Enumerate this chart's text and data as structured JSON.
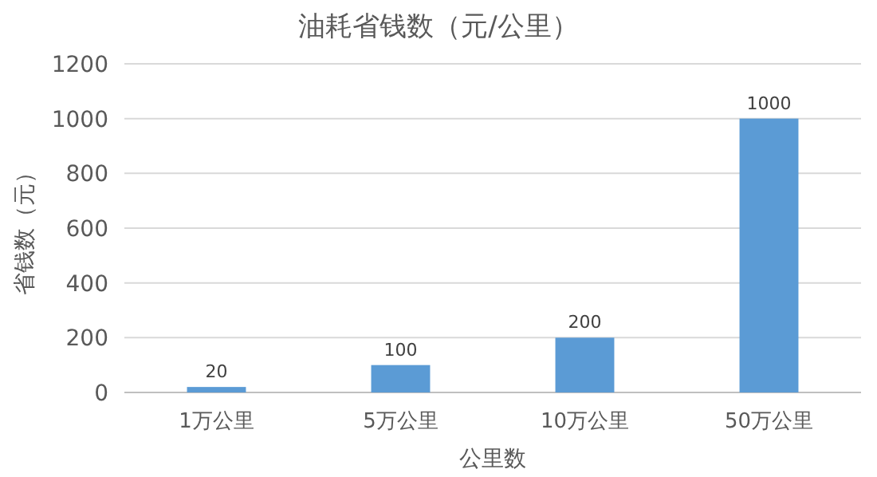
{
  "chart_data": {
    "type": "bar",
    "title": "油耗省钱数（元/公里）",
    "xlabel": "公里数",
    "ylabel": "省钱数（元）",
    "categories": [
      "1万公里",
      "5万公里",
      "10万公里",
      "50万公里"
    ],
    "values": [
      20,
      100,
      200,
      1000
    ],
    "color": "#5b9bd5",
    "ylim": [
      0,
      1200
    ],
    "yticks": [
      0,
      200,
      400,
      600,
      800,
      1000,
      1200
    ],
    "grid": "y",
    "data_labels": true
  }
}
